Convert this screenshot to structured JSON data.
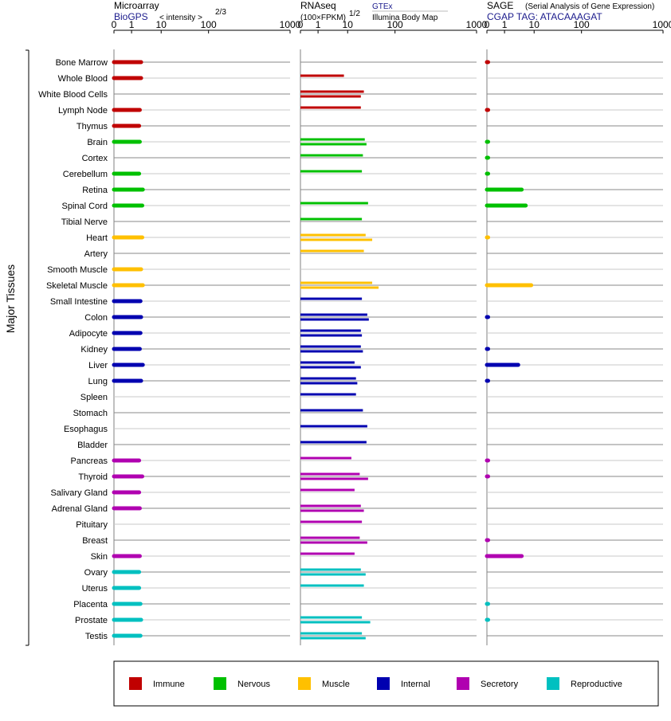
{
  "panels": [
    {
      "id": "microarray",
      "title": "Microarray",
      "source": "BioGPS",
      "scale_label": "< intensity >",
      "scale_exp": "2/3",
      "ticks": [
        "0",
        "1",
        "10",
        "100",
        "1000"
      ]
    },
    {
      "id": "rnaseq",
      "title": "RNAseq",
      "unit_label": "(100×FPKM)",
      "unit_exp": "1/2",
      "source": "GTEx",
      "source2": "Illumina Body Map",
      "ticks": [
        "0",
        "1",
        "10",
        "100",
        "1000"
      ]
    },
    {
      "id": "sage",
      "title": "SAGE",
      "subtitle": "(Serial Analysis of Gene Expression)",
      "source": "CGAP TAG: ATACAAAGAT",
      "ticks": [
        "0",
        "1",
        "10",
        "100",
        "1000"
      ]
    }
  ],
  "group_label": "Major Tissues",
  "legend": [
    {
      "name": "Immune",
      "color": "#c00000"
    },
    {
      "name": "Nervous",
      "color": "#00c000"
    },
    {
      "name": "Muscle",
      "color": "#ffc000"
    },
    {
      "name": "Internal",
      "color": "#0000b0"
    },
    {
      "name": "Secretory",
      "color": "#b000b0"
    },
    {
      "name": "Reproductive",
      "color": "#00c0c0"
    }
  ],
  "chart_data": {
    "type": "bar",
    "scale": "tick labels 0,1,10,100,1000 on a power-transformed axis",
    "categories": [
      "Bone Marrow",
      "Whole Blood",
      "White Blood Cells",
      "Lymph Node",
      "Thymus",
      "Brain",
      "Cortex",
      "Cerebellum",
      "Retina",
      "Spinal Cord",
      "Tibial Nerve",
      "Heart",
      "Artery",
      "Smooth Muscle",
      "Skeletal Muscle",
      "Small Intestine",
      "Colon",
      "Adipocyte",
      "Kidney",
      "Liver",
      "Lung",
      "Spleen",
      "Stomach",
      "Esophagus",
      "Bladder",
      "Pancreas",
      "Thyroid",
      "Salivary Gland",
      "Adrenal Gland",
      "Pituitary",
      "Breast",
      "Skin",
      "Ovary",
      "Uterus",
      "Placenta",
      "Prostate",
      "Testis"
    ],
    "groups": [
      "Immune",
      "Immune",
      "Immune",
      "Immune",
      "Immune",
      "Nervous",
      "Nervous",
      "Nervous",
      "Nervous",
      "Nervous",
      "Nervous",
      "Muscle",
      "Muscle",
      "Muscle",
      "Muscle",
      "Internal",
      "Internal",
      "Internal",
      "Internal",
      "Internal",
      "Internal",
      "Internal",
      "Internal",
      "Internal",
      "Internal",
      "Secretory",
      "Secretory",
      "Secretory",
      "Secretory",
      "Secretory",
      "Secretory",
      "Secretory",
      "Reproductive",
      "Reproductive",
      "Reproductive",
      "Reproductive",
      "Reproductive"
    ],
    "microarray": [
      2.1,
      2.1,
      null,
      1.9,
      1.8,
      1.9,
      null,
      1.8,
      2.4,
      2.3,
      null,
      2.3,
      null,
      2.1,
      2.4,
      2.0,
      2.1,
      2.0,
      1.9,
      2.4,
      2.1,
      null,
      null,
      null,
      null,
      1.8,
      2.3,
      1.8,
      1.9,
      null,
      null,
      1.9,
      1.8,
      1.8,
      2.0,
      2.1,
      2.0
    ],
    "rnaseq_gtex": [
      null,
      7.5,
      null,
      null,
      null,
      23,
      null,
      null,
      null,
      null,
      null,
      null,
      null,
      null,
      null,
      null,
      null,
      null,
      null,
      null,
      null,
      null,
      null,
      null,
      null,
      null,
      null,
      null,
      null,
      null,
      null,
      null,
      null,
      null,
      null,
      null,
      null
    ],
    "rnaseq": [
      null,
      7.5,
      [
        22,
        19
      ],
      19,
      null,
      [
        23,
        25
      ],
      21,
      20,
      null,
      27,
      20,
      [
        24,
        33
      ],
      22,
      null,
      [
        33,
        45
      ],
      20,
      [
        26,
        28
      ],
      [
        19,
        20
      ],
      [
        19,
        21
      ],
      [
        14,
        19
      ],
      [
        15,
        16
      ],
      15,
      21,
      26,
      25,
      12,
      [
        18,
        27
      ],
      14,
      [
        19,
        22
      ],
      20,
      [
        18,
        26
      ],
      14,
      [
        19,
        24
      ],
      22,
      null,
      [
        20,
        30
      ],
      [
        20,
        24
      ]
    ],
    "sage": [
      0.03,
      null,
      null,
      0.03,
      null,
      0.03,
      0.03,
      0.03,
      3.8,
      5.2,
      null,
      0.02,
      null,
      null,
      8.0,
      null,
      0.03,
      null,
      0.03,
      2.9,
      0.03,
      null,
      null,
      null,
      null,
      0.03,
      0.03,
      null,
      null,
      null,
      0.03,
      3.8,
      null,
      null,
      0.03,
      0.03,
      null
    ]
  }
}
